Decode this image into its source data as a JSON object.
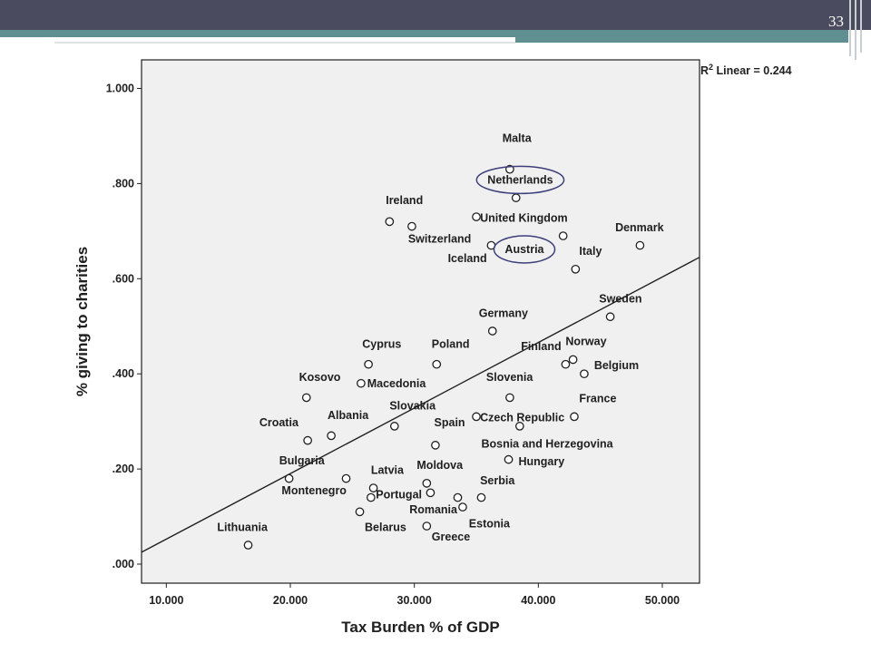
{
  "slide": {
    "number": "33"
  },
  "colors": {
    "header": "#4a4b5e",
    "accent": "#5f8f91",
    "highlight_ellipse": "#3d3f7a"
  },
  "chart_data": {
    "type": "scatter",
    "xlabel": "Tax Burden % of GDP",
    "ylabel": "% giving to charities",
    "xlim": [
      8,
      53
    ],
    "ylim": [
      -0.04,
      1.06
    ],
    "xticks": [
      "10.000",
      "20.000",
      "30.000",
      "40.000",
      "50.000"
    ],
    "xtick_values": [
      10,
      20,
      30,
      40,
      50
    ],
    "yticks": [
      ".000",
      ".200",
      ".400",
      ".600",
      ".800",
      "1.000"
    ],
    "ytick_values": [
      0,
      0.2,
      0.4,
      0.6,
      0.8,
      1.0
    ],
    "fit_label_prefix": "R",
    "fit_label_sup": "2",
    "fit_label_suffix": " Linear = 0.244",
    "fit_line": {
      "x": [
        8,
        53
      ],
      "y": [
        0.025,
        0.645
      ]
    },
    "highlighted": [
      "Netherlands",
      "Austria"
    ],
    "points": [
      {
        "name": "Malta",
        "x": 37.7,
        "y": 0.83,
        "lx": 37.1,
        "ly": 0.887,
        "anchor": "start"
      },
      {
        "name": "Netherlands",
        "x": 38.2,
        "y": 0.77,
        "lx": 35.9,
        "ly": 0.8,
        "anchor": "start"
      },
      {
        "name": "Ireland",
        "x": 28.0,
        "y": 0.72,
        "lx": 27.7,
        "ly": 0.757,
        "anchor": "start"
      },
      {
        "name": "United Kingdom",
        "x": 35.0,
        "y": 0.73,
        "lx": 35.3,
        "ly": 0.72,
        "anchor": "start"
      },
      {
        "name": "Switzerland",
        "x": 29.8,
        "y": 0.71,
        "lx": 29.5,
        "ly": 0.676,
        "anchor": "start"
      },
      {
        "name": "Denmark",
        "x": 48.2,
        "y": 0.67,
        "lx": 46.2,
        "ly": 0.7,
        "anchor": "start"
      },
      {
        "name": "Austria",
        "x": 42.0,
        "y": 0.69,
        "lx": 37.3,
        "ly": 0.654,
        "anchor": "start"
      },
      {
        "name": "Iceland",
        "x": 36.2,
        "y": 0.67,
        "lx": 32.7,
        "ly": 0.635,
        "anchor": "start"
      },
      {
        "name": "Italy",
        "x": 43.0,
        "y": 0.62,
        "lx": 43.3,
        "ly": 0.65,
        "anchor": "start"
      },
      {
        "name": "Sweden",
        "x": 45.8,
        "y": 0.52,
        "lx": 44.9,
        "ly": 0.55,
        "anchor": "start"
      },
      {
        "name": "Germany",
        "x": 36.3,
        "y": 0.49,
        "lx": 35.2,
        "ly": 0.52,
        "anchor": "start"
      },
      {
        "name": "Cyprus",
        "x": 26.3,
        "y": 0.42,
        "lx": 25.8,
        "ly": 0.455,
        "anchor": "start"
      },
      {
        "name": "Poland",
        "x": 31.8,
        "y": 0.42,
        "lx": 31.4,
        "ly": 0.455,
        "anchor": "start"
      },
      {
        "name": "Finland",
        "x": 42.2,
        "y": 0.42,
        "lx": 38.6,
        "ly": 0.45,
        "anchor": "start"
      },
      {
        "name": "Norway",
        "x": 42.8,
        "y": 0.43,
        "lx": 42.2,
        "ly": 0.46,
        "anchor": "start"
      },
      {
        "name": "Belgium",
        "x": 43.7,
        "y": 0.4,
        "lx": 44.5,
        "ly": 0.41,
        "anchor": "start"
      },
      {
        "name": "Kosovo",
        "x": 21.3,
        "y": 0.35,
        "lx": 20.7,
        "ly": 0.385,
        "anchor": "start"
      },
      {
        "name": "Macedonia",
        "x": 25.7,
        "y": 0.38,
        "lx": 26.2,
        "ly": 0.372,
        "anchor": "start"
      },
      {
        "name": "Slovenia",
        "x": 37.7,
        "y": 0.35,
        "lx": 35.8,
        "ly": 0.385,
        "anchor": "start"
      },
      {
        "name": "France",
        "x": 42.9,
        "y": 0.31,
        "lx": 43.3,
        "ly": 0.34,
        "anchor": "start"
      },
      {
        "name": "Croatia",
        "x": 21.4,
        "y": 0.26,
        "lx": 17.5,
        "ly": 0.29,
        "anchor": "start"
      },
      {
        "name": "Albania",
        "x": 23.3,
        "y": 0.27,
        "lx": 23.0,
        "ly": 0.305,
        "anchor": "start"
      },
      {
        "name": "Slovakia",
        "x": 28.4,
        "y": 0.29,
        "lx": 28.0,
        "ly": 0.325,
        "anchor": "start"
      },
      {
        "name": "Czech Republic",
        "x": 35.0,
        "y": 0.31,
        "lx": 35.3,
        "ly": 0.3,
        "anchor": "start"
      },
      {
        "name": "Bosnia and Herzegovina",
        "x": 38.5,
        "y": 0.29,
        "lx": 35.4,
        "ly": 0.245,
        "anchor": "start"
      },
      {
        "name": "Spain",
        "x": 31.7,
        "y": 0.25,
        "lx": 31.6,
        "ly": 0.29,
        "anchor": "start"
      },
      {
        "name": "Hungary",
        "x": 37.6,
        "y": 0.22,
        "lx": 38.4,
        "ly": 0.208,
        "anchor": "start"
      },
      {
        "name": "Bulgaria",
        "x": 19.9,
        "y": 0.18,
        "lx": 19.1,
        "ly": 0.21,
        "anchor": "start"
      },
      {
        "name": "Montenegro",
        "x": 24.5,
        "y": 0.18,
        "lx": 19.3,
        "ly": 0.147,
        "anchor": "start"
      },
      {
        "name": "Latvia",
        "x": 26.7,
        "y": 0.16,
        "lx": 26.5,
        "ly": 0.19,
        "anchor": "start"
      },
      {
        "name": "Portugal",
        "x": 26.5,
        "y": 0.14,
        "lx": 26.9,
        "ly": 0.138,
        "anchor": "start"
      },
      {
        "name": "Moldova",
        "x": 31.0,
        "y": 0.17,
        "lx": 30.2,
        "ly": 0.2,
        "anchor": "start"
      },
      {
        "name": "Serbia",
        "x": 35.4,
        "y": 0.14,
        "lx": 35.3,
        "ly": 0.168,
        "anchor": "start"
      },
      {
        "name": "Romania",
        "x": 33.9,
        "y": 0.12,
        "lx": 29.6,
        "ly": 0.107,
        "anchor": "start"
      },
      {
        "name": "Estonia",
        "x": 33.5,
        "y": 0.14,
        "lx": 34.4,
        "ly": 0.077,
        "anchor": "start"
      },
      {
        "name": "Belarus",
        "x": 25.6,
        "y": 0.11,
        "lx": 26.0,
        "ly": 0.07,
        "anchor": "start"
      },
      {
        "name": "Greece",
        "x": 31.0,
        "y": 0.08,
        "lx": 31.4,
        "ly": 0.05,
        "anchor": "start"
      },
      {
        "name": "Lithuania",
        "x": 16.6,
        "y": 0.04,
        "lx": 14.1,
        "ly": 0.07,
        "anchor": "start"
      },
      {
        "name": "",
        "x": 31.3,
        "y": 0.15,
        "lx": 31.3,
        "ly": 0.15,
        "anchor": "start"
      }
    ]
  }
}
